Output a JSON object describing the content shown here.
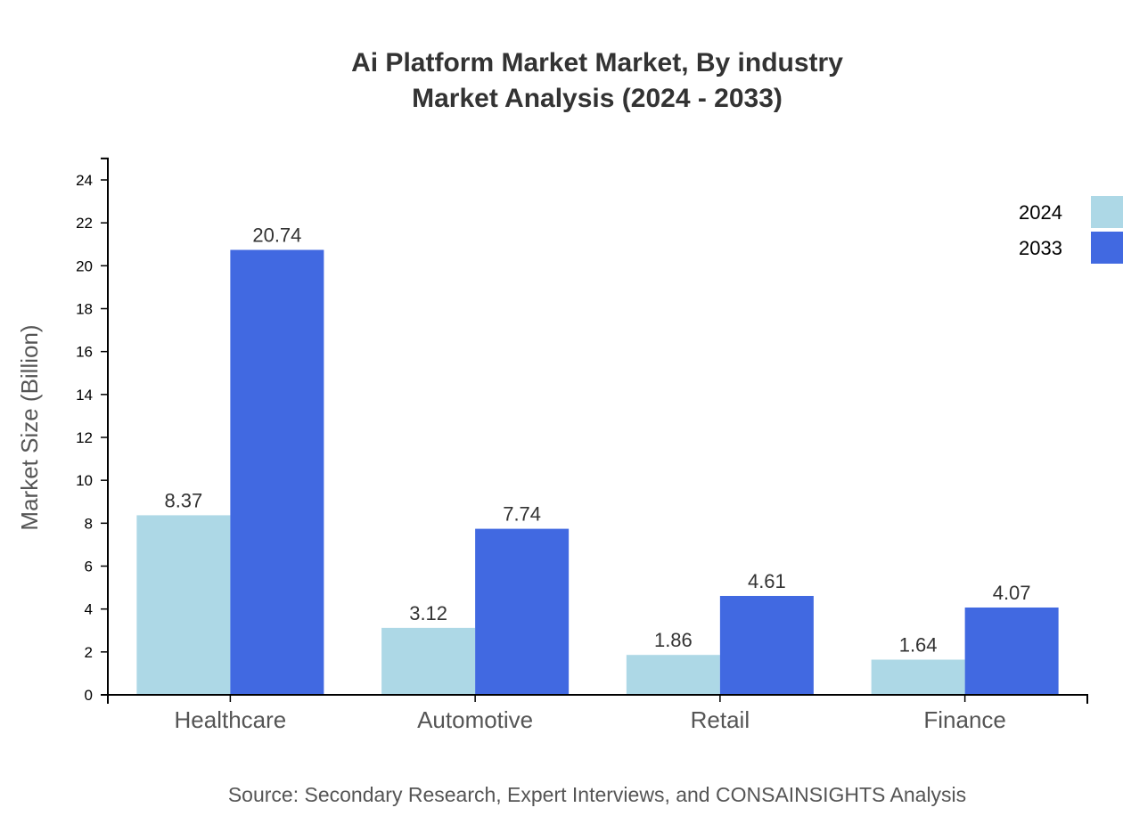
{
  "chart_data": {
    "type": "bar",
    "title": "Ai Platform Market Market, By industry",
    "subtitle": "Market Analysis (2024 - 2033)",
    "xlabel": "",
    "ylabel": "Market Size (Billion)",
    "ylim": [
      0,
      25
    ],
    "yticks": [
      0,
      2,
      4,
      6,
      8,
      10,
      12,
      14,
      16,
      18,
      20,
      22,
      24
    ],
    "grid": false,
    "legend_position": "top-right",
    "categories": [
      "Healthcare",
      "Automotive",
      "Retail",
      "Finance"
    ],
    "series": [
      {
        "name": "2024",
        "color": "#add8e6",
        "values": [
          8.37,
          3.12,
          1.86,
          1.64
        ]
      },
      {
        "name": "2033",
        "color": "#4169e1",
        "values": [
          20.74,
          7.74,
          4.61,
          4.07
        ]
      }
    ],
    "source": "Source: Secondary Research, Expert Interviews, and CONSAINSIGHTS Analysis"
  }
}
